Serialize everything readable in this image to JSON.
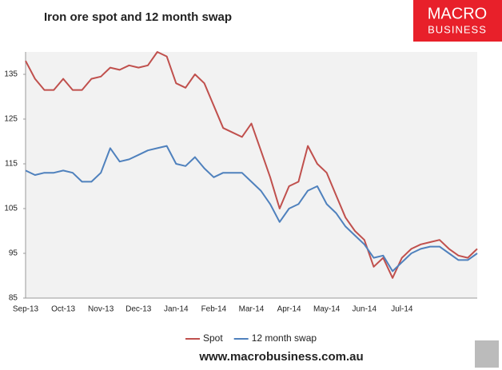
{
  "chart_data": {
    "type": "line",
    "title": "Iron ore spot and 12 month swap",
    "logo": {
      "line1": "MACRO",
      "line2": "BUSINESS"
    },
    "footer": "www.macrobusiness.com.au",
    "categories": [
      "Sep-13",
      null,
      null,
      null,
      "Oct-13",
      null,
      null,
      null,
      "Nov-13",
      null,
      null,
      null,
      "Dec-13",
      null,
      null,
      null,
      "Jan-14",
      null,
      null,
      null,
      "Feb-14",
      null,
      null,
      null,
      "Mar-14",
      null,
      null,
      null,
      "Apr-14",
      null,
      null,
      null,
      "May-14",
      null,
      null,
      null,
      "Jun-14",
      null,
      null,
      null,
      "Jul-14",
      null,
      null,
      null,
      null,
      null,
      null,
      null,
      null
    ],
    "series": [
      {
        "name": "Spot",
        "color": "#c0504d",
        "values": [
          138,
          134,
          131.5,
          131.5,
          134,
          131.5,
          131.5,
          134,
          134.5,
          136.5,
          136,
          137,
          136.5,
          137,
          140,
          139,
          133,
          132,
          135,
          133,
          128,
          123,
          122,
          121,
          124,
          118,
          112,
          105,
          110,
          111,
          119,
          115,
          113,
          108,
          103,
          100,
          98,
          92,
          94,
          89.5,
          94,
          96,
          97,
          97.5,
          98,
          96,
          94.5,
          94,
          96
        ]
      },
      {
        "name": "12 month swap",
        "color": "#4f81bd",
        "values": [
          113.5,
          112.5,
          113,
          113,
          113.5,
          113,
          111,
          111,
          113,
          118.5,
          115.5,
          116,
          117,
          118,
          118.5,
          119,
          115,
          114.5,
          116.5,
          114,
          112,
          113,
          113,
          113,
          111,
          109,
          106,
          102,
          105,
          106,
          109,
          110,
          106,
          104,
          101,
          99,
          97,
          94,
          94.5,
          91,
          93,
          95,
          96,
          96.5,
          96.5,
          95,
          93.5,
          93.5,
          95
        ]
      }
    ],
    "ylim": [
      85,
      140
    ],
    "yticks": [
      85,
      95,
      105,
      115,
      125,
      135
    ],
    "grid": false,
    "legend": "bottom"
  }
}
